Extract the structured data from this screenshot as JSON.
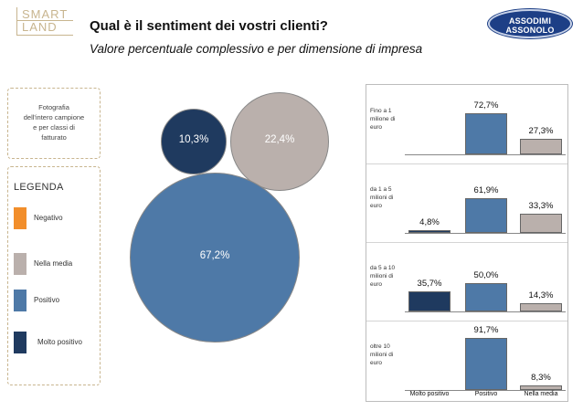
{
  "logo": {
    "smart_line1": "SMART",
    "smart_line2": "LAND",
    "brand_line1": "ASSODIMI",
    "brand_line2": "ASSONOLO"
  },
  "title": "Qual è il sentiment dei vostri clienti?",
  "subtitle": "Valore percentuale complessivo e per dimensione di impresa",
  "info_box": {
    "lines": [
      "Fotografia",
      "dell'intero campione",
      "e per classi di",
      "fatturato"
    ]
  },
  "legend": {
    "title": "LEGENDA",
    "items": [
      {
        "label": "Negativo",
        "color": "#f28e2b"
      },
      {
        "label": "Nella media",
        "color": "#bab0ac"
      },
      {
        "label": "Positivo",
        "color": "#4e79a7"
      },
      {
        "label": "Molto positivo",
        "color": "#1f3a5f"
      }
    ]
  },
  "chart_data": [
    {
      "type": "bubble",
      "series": [
        {
          "name": "Molto positivo",
          "value": 10.3,
          "label": "10,3%",
          "color": "#1f3a5f"
        },
        {
          "name": "Nella media",
          "value": 22.4,
          "label": "22,4%",
          "color": "#bab0ac"
        },
        {
          "name": "Positivo",
          "value": 67.2,
          "label": "67,2%",
          "color": "#4e79a7"
        }
      ]
    },
    {
      "type": "bar",
      "categories": [
        "Molto positivo",
        "Positivo",
        "Nella media"
      ],
      "colors": [
        "#1f3a5f",
        "#4e79a7",
        "#bab0ac"
      ],
      "rows": [
        {
          "label_lines": [
            "Fino a 1",
            "milione di",
            "euro"
          ],
          "values": [
            null,
            72.7,
            27.3
          ],
          "labels": [
            "",
            "72,7%",
            "27,3%"
          ]
        },
        {
          "label_lines": [
            "da 1 a 5",
            "milioni di",
            "euro"
          ],
          "values": [
            4.8,
            61.9,
            33.3
          ],
          "labels": [
            "4,8%",
            "61,9%",
            "33,3%"
          ]
        },
        {
          "label_lines": [
            "da 5 a 10",
            "milioni di",
            "euro"
          ],
          "values": [
            35.7,
            50.0,
            14.3
          ],
          "labels": [
            "35,7%",
            "50,0%",
            "14,3%"
          ]
        },
        {
          "label_lines": [
            "oltre 10",
            "milioni di",
            "euro"
          ],
          "values": [
            null,
            91.7,
            8.3
          ],
          "labels": [
            "",
            "91,7%",
            "8,3%"
          ]
        }
      ]
    }
  ]
}
